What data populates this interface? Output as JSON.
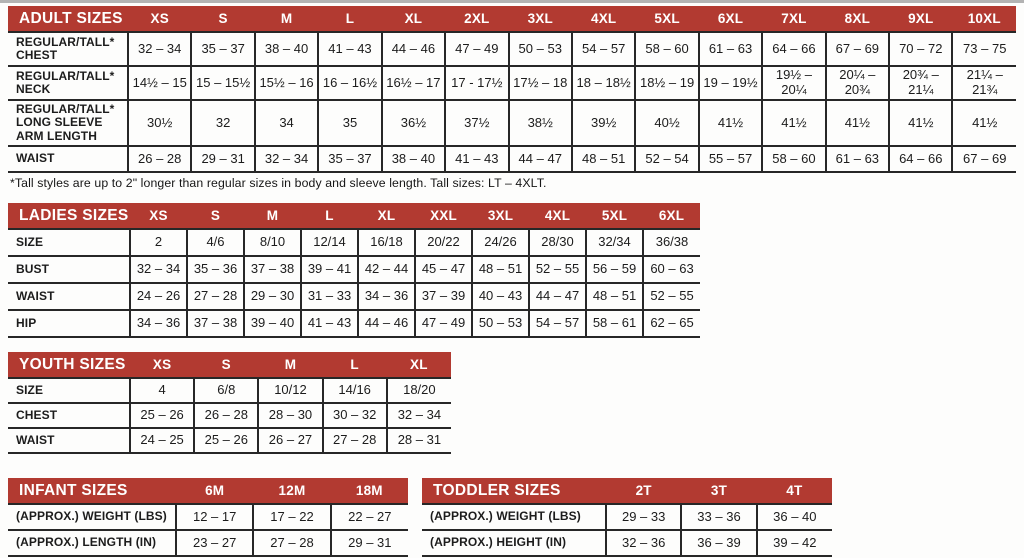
{
  "theme": {
    "header_bg": "#b23a31",
    "header_text": "#ffffff",
    "border": "#272727",
    "text": "#1c1c1c"
  },
  "footnote": "*Tall styles are up to 2\" longer than regular sizes in body and sleeve length. Tall sizes: LT – 4XLT.",
  "tables": [
    {
      "id": "adult",
      "title": "ADULT SIZES",
      "columns": [
        "XS",
        "S",
        "M",
        "L",
        "XL",
        "2XL",
        "3XL",
        "4XL",
        "5XL",
        "6XL",
        "7XL",
        "8XL",
        "9XL",
        "10XL"
      ],
      "rows": [
        {
          "label": "REGULAR/TALL*\nCHEST",
          "values": [
            "32 – 34",
            "35 – 37",
            "38 – 40",
            "41 – 43",
            "44 – 46",
            "47 – 49",
            "50 – 53",
            "54 – 57",
            "58 – 60",
            "61 – 63",
            "64 – 66",
            "67 – 69",
            "70 – 72",
            "73 – 75"
          ]
        },
        {
          "label": "REGULAR/TALL*\nNECK",
          "values": [
            "14½ – 15",
            "15 – 15½",
            "15½ – 16",
            "16 – 16½",
            "16½ – 17",
            "17 - 17½",
            "17½ – 18",
            "18 – 18½",
            "18½ – 19",
            "19 – 19½",
            "19½ –\n20¼",
            "20¼ –\n20¾",
            "20¾ –\n21¼",
            "21¼ –\n21¾"
          ]
        },
        {
          "label": "REGULAR/TALL*\nLONG SLEEVE\nARM LENGTH",
          "values": [
            "30½",
            "32",
            "34",
            "35",
            "36½",
            "37½",
            "38½",
            "39½",
            "40½",
            "41½",
            "41½",
            "41½",
            "41½",
            "41½"
          ]
        },
        {
          "label": "WAIST",
          "values": [
            "26 – 28",
            "29 – 31",
            "32 – 34",
            "35 – 37",
            "38 – 40",
            "41 – 43",
            "44 – 47",
            "48 – 51",
            "52 – 54",
            "55 – 57",
            "58 – 60",
            "61 – 63",
            "64 – 66",
            "67 – 69"
          ]
        }
      ]
    },
    {
      "id": "ladies",
      "title": "LADIES SIZES",
      "columns": [
        "XS",
        "S",
        "M",
        "L",
        "XL",
        "XXL",
        "3XL",
        "4XL",
        "5XL",
        "6XL"
      ],
      "rows": [
        {
          "label": "SIZE",
          "values": [
            "2",
            "4/6",
            "8/10",
            "12/14",
            "16/18",
            "20/22",
            "24/26",
            "28/30",
            "32/34",
            "36/38"
          ]
        },
        {
          "label": "BUST",
          "values": [
            "32 – 34",
            "35 – 36",
            "37 – 38",
            "39 – 41",
            "42 – 44",
            "45 – 47",
            "48 – 51",
            "52 – 55",
            "56 – 59",
            "60 – 63"
          ]
        },
        {
          "label": "WAIST",
          "values": [
            "24 – 26",
            "27 – 28",
            "29 – 30",
            "31 – 33",
            "34 – 36",
            "37 – 39",
            "40 – 43",
            "44 – 47",
            "48 – 51",
            "52 – 55"
          ]
        },
        {
          "label": "HIP",
          "values": [
            "34 – 36",
            "37 – 38",
            "39 – 40",
            "41 – 43",
            "44 – 46",
            "47 – 49",
            "50 – 53",
            "54 – 57",
            "58 – 61",
            "62 – 65"
          ]
        }
      ]
    },
    {
      "id": "youth",
      "title": "YOUTH SIZES",
      "columns": [
        "XS",
        "S",
        "M",
        "L",
        "XL"
      ],
      "rows": [
        {
          "label": "SIZE",
          "values": [
            "4",
            "6/8",
            "10/12",
            "14/16",
            "18/20"
          ]
        },
        {
          "label": "CHEST",
          "values": [
            "25 – 26",
            "26 – 28",
            "28 – 30",
            "30 – 32",
            "32 – 34"
          ]
        },
        {
          "label": "WAIST",
          "values": [
            "24 – 25",
            "25 – 26",
            "26 – 27",
            "27 – 28",
            "28 – 31"
          ]
        }
      ]
    },
    {
      "id": "infant",
      "title": "INFANT SIZES",
      "columns": [
        "6M",
        "12M",
        "18M"
      ],
      "rows": [
        {
          "label": "(APPROX.) WEIGHT (LBS)",
          "values": [
            "12 – 17",
            "17 – 22",
            "22 – 27"
          ]
        },
        {
          "label": "(APPROX.) LENGTH (IN)",
          "values": [
            "23 – 27",
            "27 – 28",
            "29 – 31"
          ]
        }
      ]
    },
    {
      "id": "toddler",
      "title": "TODDLER SIZES",
      "columns": [
        "2T",
        "3T",
        "4T"
      ],
      "rows": [
        {
          "label": "(APPROX.) WEIGHT (LBS)",
          "values": [
            "29 – 33",
            "33 – 36",
            "36 – 40"
          ]
        },
        {
          "label": "(APPROX.) HEIGHT (IN)",
          "values": [
            "32 – 36",
            "36 – 39",
            "39 – 42"
          ]
        }
      ]
    }
  ]
}
